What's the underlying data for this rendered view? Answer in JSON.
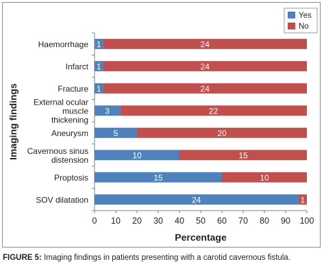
{
  "chart_data": {
    "type": "bar",
    "stacked": true,
    "orientation": "horizontal",
    "categories": [
      "Haemorrhage",
      "Infarct",
      "Fracture",
      "External ocular muscle thickening",
      "Aneurysm",
      "Cavernous sinus distension",
      "Proptosis",
      "SOV dilatation"
    ],
    "category_lines": [
      [
        "Haemorrhage"
      ],
      [
        "Infarct"
      ],
      [
        "Fracture"
      ],
      [
        "External ocular",
        "muscle",
        "thickening"
      ],
      [
        "Aneurysm"
      ],
      [
        "Cavernous sinus",
        "distension"
      ],
      [
        "Proptosis"
      ],
      [
        "SOV dilatation"
      ]
    ],
    "series": [
      {
        "name": "Yes",
        "color": "#4f81bd",
        "values": [
          1,
          1,
          1,
          3,
          5,
          10,
          15,
          24
        ]
      },
      {
        "name": "No",
        "color": "#c0504d",
        "values": [
          24,
          24,
          24,
          22,
          20,
          15,
          10,
          1
        ]
      }
    ],
    "xlabel": "Percentage",
    "ylabel": "Imaging findings",
    "xlim": [
      0,
      100
    ],
    "xticks": [
      0,
      10,
      20,
      30,
      40,
      50,
      60,
      70,
      80,
      90,
      100
    ],
    "grid": false,
    "legend_position": "top-right"
  },
  "caption": {
    "label": "FIGURE 5:",
    "text": " Imaging findings in patients presenting with a carotid cavernous fistula."
  }
}
